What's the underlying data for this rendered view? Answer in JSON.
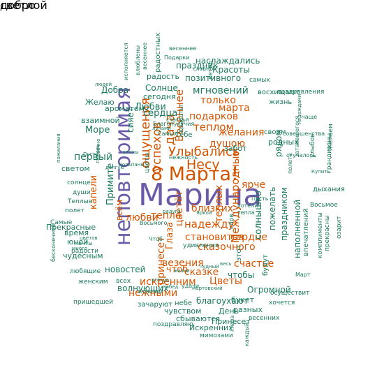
{
  "colors": {
    "purple": "#6a5aa8",
    "orange": "#d35400",
    "green": "#1a7a5e"
  },
  "words": [
    {
      "text": "Марина",
      "color": "purple"
    },
    {
      "text": "неповторимая",
      "color": "purple"
    },
    {
      "text": "8 Марта!",
      "color": "orange"
    },
    {
      "text": "Улыбались",
      "color": "orange"
    },
    {
      "text": "Весеннее",
      "color": "orange"
    },
    {
      "text": "ощущения",
      "color": "orange"
    },
    {
      "text": "успехов",
      "color": "orange"
    },
    {
      "text": "дача",
      "color": "orange"
    },
    {
      "text": "Несу",
      "color": "orange"
    },
    {
      "text": "душою",
      "color": "orange"
    },
    {
      "text": "желания",
      "color": "orange"
    },
    {
      "text": "теплом",
      "color": "orange"
    },
    {
      "text": "подарков",
      "color": "orange"
    },
    {
      "text": "марта",
      "color": "orange"
    },
    {
      "text": "только",
      "color": "orange"
    },
    {
      "text": "мгновений",
      "color": "green"
    },
    {
      "text": "позитивного",
      "color": "green"
    },
    {
      "text": "Красоты",
      "color": "green"
    },
    {
      "text": "праздник",
      "color": "green"
    },
    {
      "text": "наслаждались",
      "color": "green"
    },
    {
      "text": "Солнце",
      "color": "green"
    },
    {
      "text": "сегодня",
      "color": "green"
    },
    {
      "text": "радость",
      "color": "green"
    },
    {
      "text": "Любви",
      "color": "green"
    },
    {
      "text": "Добра",
      "color": "green"
    },
    {
      "text": "сердца",
      "color": "green"
    },
    {
      "text": "ароматом",
      "color": "green"
    },
    {
      "text": "Желаю",
      "color": "green"
    },
    {
      "text": "взаимной",
      "color": "green"
    },
    {
      "text": "Море",
      "color": "green"
    },
    {
      "text": "сияет",
      "color": "green"
    },
    {
      "text": "первый",
      "color": "green"
    },
    {
      "text": "светом",
      "color": "green"
    },
    {
      "text": "капели",
      "color": "orange"
    },
    {
      "text": "всём",
      "color": "orange"
    },
    {
      "text": "Примите",
      "color": "green"
    },
    {
      "text": "тепло",
      "color": "orange"
    },
    {
      "text": "любви",
      "color": "orange"
    },
    {
      "text": "цветёт",
      "color": "orange"
    },
    {
      "text": "Глаза",
      "color": "orange"
    },
    {
      "text": "теплых",
      "color": "orange"
    },
    {
      "text": "близких",
      "color": "orange"
    },
    {
      "text": "надежду",
      "color": "orange"
    },
    {
      "text": "становится",
      "color": "orange"
    },
    {
      "text": "сказочного",
      "color": "orange"
    },
    {
      "text": "везения",
      "color": "orange"
    },
    {
      "text": "сказке",
      "color": "orange"
    },
    {
      "text": "чтоб",
      "color": "orange"
    },
    {
      "text": "принесет",
      "color": "orange"
    },
    {
      "text": "искренним",
      "color": "orange"
    },
    {
      "text": "нежными",
      "color": "orange"
    },
    {
      "text": "Цветы",
      "color": "orange"
    },
    {
      "text": "Международным",
      "color": "orange"
    },
    {
      "text": "сердце",
      "color": "orange"
    },
    {
      "text": "счастье",
      "color": "orange"
    },
    {
      "text": "ярче",
      "color": "orange"
    },
    {
      "text": "солнышко",
      "color": "green"
    },
    {
      "text": "пожелать",
      "color": "green"
    },
    {
      "text": "праздником",
      "color": "green"
    },
    {
      "text": "наполненной",
      "color": "green"
    },
    {
      "text": "Огромной",
      "color": "green"
    },
    {
      "text": "чтобы",
      "color": "green"
    },
    {
      "text": "благоухают",
      "color": "green"
    },
    {
      "text": "волнующих",
      "color": "green"
    },
    {
      "text": "новостей",
      "color": "green"
    },
    {
      "text": "чувством",
      "color": "green"
    },
    {
      "text": "букет",
      "color": "green"
    },
    {
      "text": "День",
      "color": "green"
    },
    {
      "text": "Принесет",
      "color": "green"
    },
    {
      "text": "Искренних",
      "color": "green"
    },
    {
      "text": "сбываются",
      "color": "green"
    },
    {
      "text": "разных",
      "color": "green"
    },
    {
      "text": "зачаруют",
      "color": "green"
    },
    {
      "text": "небе",
      "color": "green"
    },
    {
      "text": "чудесным",
      "color": "green"
    },
    {
      "text": "время",
      "color": "green"
    },
    {
      "text": "Прекрасные",
      "color": "green"
    },
    {
      "text": "юной",
      "color": "green"
    },
    {
      "text": "радости",
      "color": "green"
    },
    {
      "text": "любящие",
      "color": "green"
    },
    {
      "text": "женским",
      "color": "green"
    },
    {
      "text": "пришедшей",
      "color": "green"
    },
    {
      "text": "поздравляю",
      "color": "green"
    },
    {
      "text": "мимозами",
      "color": "green"
    },
    {
      "text": "весенних",
      "color": "green"
    },
    {
      "text": "хочется",
      "color": "green"
    },
    {
      "text": "осуществит",
      "color": "green"
    },
    {
      "text": "дыхания",
      "color": "green"
    },
    {
      "text": "Восьмое",
      "color": "green"
    },
    {
      "text": "жизнь",
      "color": "green"
    },
    {
      "text": "восхищают",
      "color": "green"
    },
    {
      "text": "поздравления",
      "color": "green"
    },
    {
      "text": "своим",
      "color": "green"
    },
    {
      "text": "рядом",
      "color": "green"
    },
    {
      "text": "родных",
      "color": "green"
    },
    {
      "text": "самых",
      "color": "green"
    },
    {
      "text": "весеннее",
      "color": "green"
    },
    {
      "text": "словно",
      "color": "green"
    },
    {
      "text": "ветер",
      "color": "green"
    },
    {
      "text": "забот",
      "color": "green"
    },
    {
      "text": "Тебе",
      "color": "green"
    },
    {
      "text": "красоты",
      "color": "green"
    },
    {
      "text": "цветы",
      "color": "green"
    },
    {
      "text": "солнце",
      "color": "green"
    },
    {
      "text": "души",
      "color": "green"
    },
    {
      "text": "Теплые",
      "color": "green"
    },
    {
      "text": "полет",
      "color": "green"
    },
    {
      "text": "Самые",
      "color": "green"
    },
    {
      "text": "всех",
      "color": "green"
    },
    {
      "text": "удачи",
      "color": "green"
    },
    {
      "text": "славный",
      "color": "green"
    },
    {
      "text": "всегда",
      "color": "green"
    },
    {
      "text": "этот",
      "color": "green"
    },
    {
      "text": "будут",
      "color": "green"
    },
    {
      "text": "впечатлений",
      "color": "green"
    },
    {
      "text": "комплименты",
      "color": "green"
    },
    {
      "text": "прекрасны",
      "color": "green"
    },
    {
      "text": "озарит",
      "color": "green"
    },
    {
      "text": "грандиозны",
      "color": "green"
    },
    {
      "text": "стучалось",
      "color": "green"
    },
    {
      "text": "улыбок",
      "color": "green"
    },
    {
      "text": "Желаем",
      "color": "green"
    },
    {
      "text": "затаившегося",
      "color": "green"
    },
    {
      "text": "совершенства",
      "color": "green"
    },
    {
      "text": "чаще",
      "color": "green"
    },
    {
      "text": "полета",
      "color": "green"
    },
    {
      "text": "людей",
      "color": "green"
    },
    {
      "text": "Благопулучия",
      "color": "green"
    },
    {
      "text": "счастья",
      "color": "green"
    },
    {
      "text": "лучами",
      "color": "green"
    },
    {
      "text": "Самых",
      "color": "green"
    },
    {
      "text": "Пусть",
      "color": "green"
    },
    {
      "text": "пожелания",
      "color": "green"
    },
    {
      "text": "бесконечной",
      "color": "green"
    },
    {
      "text": "нежность",
      "color": "green"
    },
    {
      "text": "Пусть",
      "color": "green"
    },
    {
      "text": "хотели",
      "color": "green"
    },
    {
      "text": "удивления",
      "color": "green"
    },
    {
      "text": "слов",
      "color": "green"
    },
    {
      "text": "Чтоб",
      "color": "green"
    },
    {
      "text": "Яркой",
      "color": "green"
    },
    {
      "text": "теплa",
      "color": "green"
    },
    {
      "text": "чудный",
      "color": "green"
    },
    {
      "text": "весь",
      "color": "green"
    },
    {
      "text": "жизни",
      "color": "green"
    },
    {
      "text": "побед",
      "color": "green"
    },
    {
      "text": "мечты",
      "color": "green"
    },
    {
      "text": "цветов",
      "color": "green"
    },
    {
      "text": "много",
      "color": "green"
    },
    {
      "text": "долгую",
      "color": "green"
    },
    {
      "text": "весны",
      "color": "green"
    },
    {
      "text": "каждый",
      "color": "green"
    },
    {
      "text": "глаза",
      "color": "green"
    },
    {
      "text": "Купить",
      "color": "green"
    },
    {
      "text": "надеждами",
      "color": "green"
    },
    {
      "text": "Март",
      "color": "green"
    },
    {
      "text": "вечно",
      "color": "green"
    },
    {
      "text": "любовь",
      "color": "green"
    },
    {
      "text": "исполняется",
      "color": "green"
    },
    {
      "text": "Подарки",
      "color": "green"
    },
    {
      "text": "радостных",
      "color": "green"
    },
    {
      "text": "весеннее",
      "color": "green"
    },
    {
      "text": "влюблены",
      "color": "green"
    },
    {
      "text": "Тюльпаны",
      "color": "green"
    },
    {
      "text": "Восьмого",
      "color": "green"
    },
    {
      "text": "радуга",
      "color": "green"
    },
    {
      "text": "мартовский",
      "color": "green"
    },
    {
      "text": "светлой",
      "color": "green"
    },
    {
      "text": "добро",
      "color": "green"
    }
  ]
}
